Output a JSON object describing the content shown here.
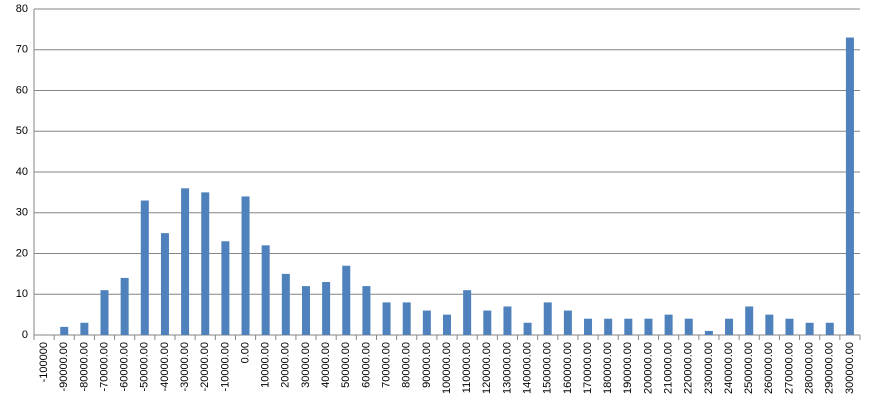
{
  "chart_data": {
    "type": "bar",
    "categories": [
      "-100000",
      "-90000.00",
      "-80000.00",
      "-70000.00",
      "-60000.00",
      "-50000.00",
      "-40000.00",
      "-30000.00",
      "-20000.00",
      "-10000.00",
      "0.00",
      "10000.00",
      "20000.00",
      "30000.00",
      "40000.00",
      "50000.00",
      "60000.00",
      "70000.00",
      "80000.00",
      "90000.00",
      "100000.00",
      "110000.00",
      "120000.00",
      "130000.00",
      "140000.00",
      "150000.00",
      "160000.00",
      "170000.00",
      "180000.00",
      "190000.00",
      "200000.00",
      "210000.00",
      "220000.00",
      "230000.00",
      "240000.00",
      "250000.00",
      "260000.00",
      "270000.00",
      "280000.00",
      "290000.00",
      "300000.00"
    ],
    "values": [
      0,
      2,
      3,
      11,
      14,
      33,
      25,
      36,
      35,
      23,
      34,
      22,
      15,
      12,
      13,
      17,
      12,
      8,
      8,
      6,
      5,
      11,
      6,
      7,
      3,
      8,
      6,
      4,
      4,
      4,
      4,
      5,
      4,
      1,
      4,
      7,
      5,
      4,
      3,
      3,
      73
    ],
    "color": "#4f81bd",
    "ylim": [
      0,
      80
    ],
    "yticks": [
      0,
      10,
      20,
      30,
      40,
      50,
      60,
      70,
      80
    ],
    "grid": true
  }
}
